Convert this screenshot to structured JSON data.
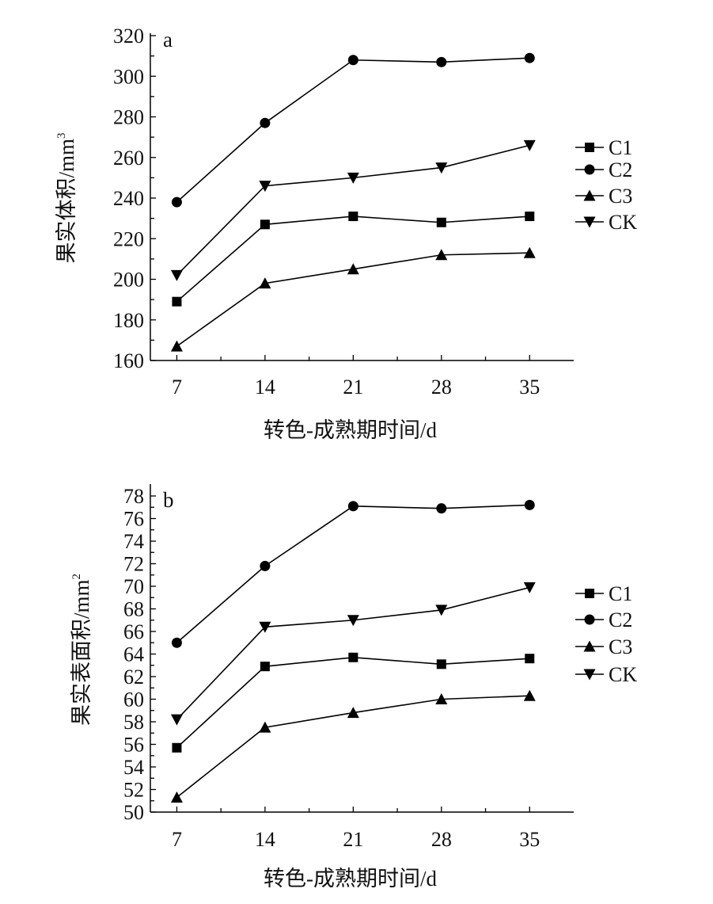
{
  "chart_data": [
    {
      "type": "line",
      "panel_label": "a",
      "title": "",
      "xlabel": "转色-成熟期时间/d",
      "ylabel": "果实体积/mm",
      "ylabel_sup": "3",
      "x": [
        7,
        14,
        21,
        28,
        35
      ],
      "xticks": [
        "7",
        "14",
        "21",
        "28",
        "35"
      ],
      "xlim": [
        4.9,
        38.5
      ],
      "ylim": [
        160,
        320
      ],
      "yticks": [
        "160",
        "180",
        "200",
        "220",
        "240",
        "260",
        "280",
        "300",
        "320"
      ],
      "yminor_step": 10,
      "legend_position": "right",
      "series": [
        {
          "name": "C1",
          "marker": "square",
          "values": [
            189,
            227,
            231,
            228,
            231
          ]
        },
        {
          "name": "C2",
          "marker": "circle",
          "values": [
            238,
            277,
            308,
            307,
            309
          ]
        },
        {
          "name": "C3",
          "marker": "triangle-up",
          "values": [
            167,
            198,
            205,
            212,
            213
          ]
        },
        {
          "name": "CK",
          "marker": "triangle-down",
          "values": [
            202,
            246,
            250,
            255,
            266
          ]
        }
      ]
    },
    {
      "type": "line",
      "panel_label": "b",
      "title": "",
      "xlabel": "转色-成熟期时间/d",
      "ylabel": "果实表面积/mm",
      "ylabel_sup": "2",
      "x": [
        7,
        14,
        21,
        28,
        35
      ],
      "xticks": [
        "7",
        "14",
        "21",
        "28",
        "35"
      ],
      "xlim": [
        4.9,
        38.5
      ],
      "ylim": [
        50,
        79
      ],
      "yticks": [
        "50",
        "52",
        "54",
        "56",
        "58",
        "60",
        "62",
        "64",
        "66",
        "68",
        "70",
        "72",
        "74",
        "76",
        "78"
      ],
      "yminor_step": 1,
      "legend_position": "right",
      "series": [
        {
          "name": "C1",
          "marker": "square",
          "values": [
            55.7,
            62.9,
            63.7,
            63.1,
            63.6
          ]
        },
        {
          "name": "C2",
          "marker": "circle",
          "values": [
            65.0,
            71.8,
            77.1,
            76.9,
            77.2
          ]
        },
        {
          "name": "C3",
          "marker": "triangle-up",
          "values": [
            51.3,
            57.5,
            58.8,
            60.0,
            60.3
          ]
        },
        {
          "name": "CK",
          "marker": "triangle-down",
          "values": [
            58.2,
            66.4,
            67.0,
            67.9,
            69.9
          ]
        }
      ]
    }
  ]
}
